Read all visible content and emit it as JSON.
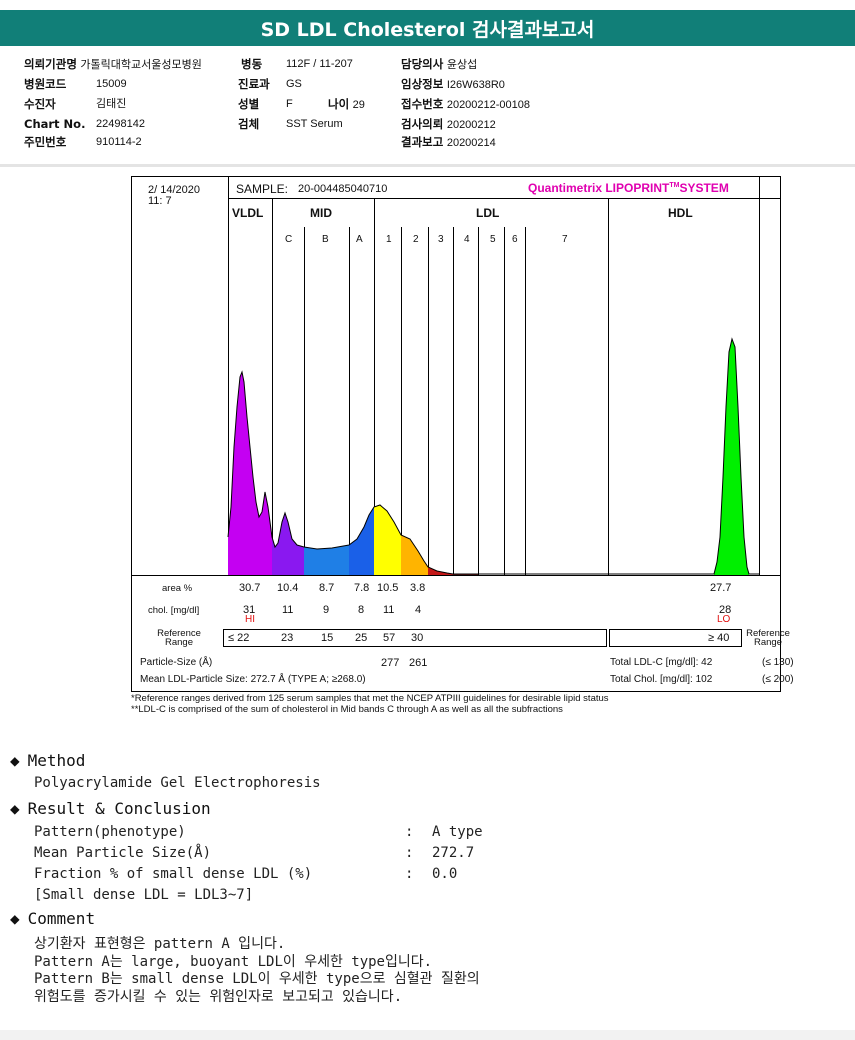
{
  "title": "SD LDL Cholesterol 검사결과보고서",
  "patient_info": {
    "institution_label": "의뢰기관명",
    "institution": "가톨릭대학교서울성모병원",
    "ward_label": "병동",
    "ward": "112F / 11-207",
    "doctor_label": "담당의사",
    "doctor": "윤상섭",
    "hospital_code_label": "병원코드",
    "hospital_code": "15009",
    "dept_label": "진료과",
    "dept": "GS",
    "clinical_label": "임상정보",
    "clinical": "I26W638R0",
    "patient_label": "수진자",
    "patient": "김태진",
    "sex_label": "성별",
    "sex": "F",
    "age_label": "나이",
    "age": "29",
    "receipt_label": "접수번호",
    "receipt": "20200212-00108",
    "chart_label": "Chart No.",
    "chart": "22498142",
    "specimen_label": "검체",
    "specimen": "SST Serum",
    "request_label": "검사의뢰",
    "request": "20200212",
    "ssn_label": "주민번호",
    "ssn": "910114-2",
    "report_label": "결과보고",
    "report": "20200214"
  },
  "report": {
    "date": "2/ 14/2020",
    "time": "11: 7",
    "sample_label": "SAMPLE:",
    "sample": "20-004485040710",
    "system": "Quantimetrix LIPOPRINT",
    "system_tm": "TM",
    "system_suffix": "SYSTEM",
    "band_groups": [
      "VLDL",
      "MID",
      "LDL",
      "HDL"
    ],
    "sub_bands": [
      "C",
      "B",
      "A",
      "1",
      "2",
      "3",
      "4",
      "5",
      "6",
      "7"
    ],
    "area_label": "area %",
    "areas": [
      "30.7",
      "10.4",
      "8.7",
      "7.8",
      "10.5",
      "3.8"
    ],
    "hdl_area": "27.7",
    "chol_label": "chol. [mg/dl]",
    "chols": [
      "31",
      "11",
      "9",
      "8",
      "11",
      "4"
    ],
    "hdl_chol": "28",
    "vldl_flag": "HI",
    "hdl_flag": "LO",
    "ref_label_1": "Reference",
    "ref_label_2": "Range",
    "refs": [
      "≤  22",
      "23",
      "15",
      "25",
      "57",
      "30"
    ],
    "hdl_ref": "≥ 40",
    "particle_label": "Particle-Size (Å)",
    "particles": [
      "277",
      "261"
    ],
    "mean_label": "Mean LDL-Particle Size:  272.7 Å   (TYPE A; ≥268.0)",
    "total_ldl_label": "Total LDL-C [mg/dl]:  42",
    "total_ldl_limit": "(≤ 130)",
    "total_chol_label": "Total Chol. [mg/dl]:   102",
    "total_chol_limit": "(≤ 200)"
  },
  "footnotes": [
    "*Reference ranges derived from 125 serum samples that met the NCEP ATPIII guidelines for desirable lipid status",
    "**LDL-C is comprised of the sum of cholesterol in Mid bands C through A as well as all the subfractions"
  ],
  "method": {
    "heading": "Method",
    "text": "Polyacrylamide Gel Electrophoresis"
  },
  "result": {
    "heading": "Result & Conclusion",
    "rows": [
      {
        "label": "Pattern(phenotype)",
        "sep": ":",
        "value": "A type"
      },
      {
        "label": "Mean Particle Size(Å)",
        "sep": ":",
        "value": "272.7"
      },
      {
        "label": "Fraction % of small dense LDL (%)",
        "sep": ":",
        "value": "0.0"
      }
    ],
    "note": "[Small dense LDL = LDL3~7]"
  },
  "comment": {
    "heading": "Comment",
    "lines": [
      "상기환자 표현형은 pattern A 입니다.",
      "Pattern A는 large, buoyant LDL이 우세한 type입니다.",
      "Pattern B는 small dense LDL이 우세한 type으로 심혈관 질환의",
      "위험도를 증가시킬 수 있는 위험인자로 보고되고 있습니다."
    ]
  },
  "colors": {
    "header": "#117f78",
    "vldl": "#c400f2",
    "c": "#8a18f0",
    "b": "#1f7fe6",
    "a": "#1a60e8",
    "ldl1": "#ffff00",
    "ldl2": "#ffb400",
    "ldl3": "#c41818",
    "hdl": "#00f000",
    "system": "#e000b0",
    "flag": "#e01010"
  }
}
